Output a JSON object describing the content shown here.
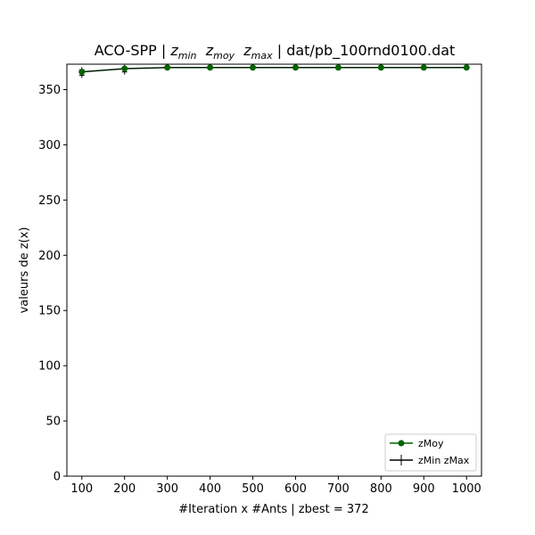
{
  "chart_data": {
    "type": "line",
    "title_prefix": "ACO-SPP | ",
    "title_math": [
      {
        "base": "z",
        "sub": "min"
      },
      {
        "base": "z",
        "sub": "moy"
      },
      {
        "base": "z",
        "sub": "max"
      }
    ],
    "title_suffix": " | dat/pb_100rnd0100.dat",
    "xlabel": "#Iteration x #Ants | zbest = 372",
    "ylabel": "valeurs de z(x)",
    "x": [
      100,
      200,
      300,
      400,
      500,
      600,
      700,
      800,
      900,
      1000
    ],
    "xticks": [
      100,
      200,
      300,
      400,
      500,
      600,
      700,
      800,
      900,
      1000
    ],
    "yticks": [
      0,
      50,
      100,
      150,
      200,
      250,
      300,
      350
    ],
    "xlim": [
      65,
      1035
    ],
    "ylim": [
      0,
      373
    ],
    "grid": false,
    "legend_position": "lower-right",
    "series": [
      {
        "name": "zMoy",
        "color": "#006400",
        "marker": "circle",
        "values": [
          366,
          369,
          370,
          370,
          370,
          370,
          370,
          370,
          370,
          370
        ]
      },
      {
        "name": "zMin zMax",
        "color": "#000000",
        "marker": "plus",
        "min": [
          363,
          366,
          370,
          370,
          370,
          370,
          370,
          370,
          370,
          370
        ],
        "max": [
          368,
          370,
          370,
          370,
          370,
          370,
          370,
          370,
          370,
          370
        ]
      }
    ]
  }
}
